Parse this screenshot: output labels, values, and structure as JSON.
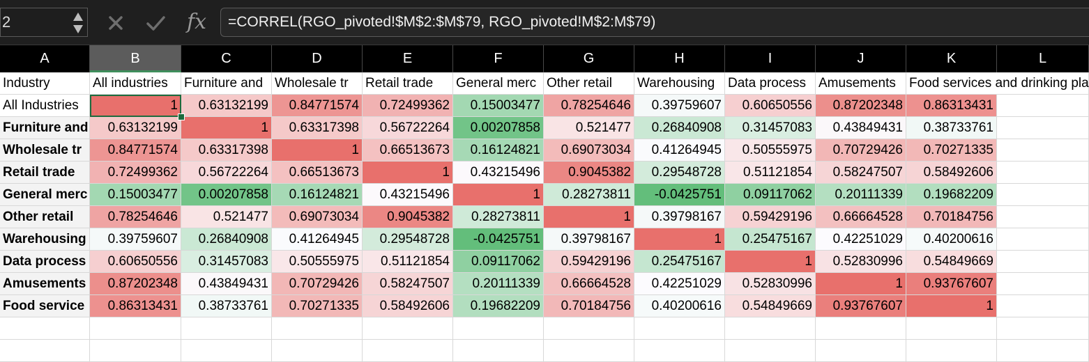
{
  "formula_bar": {
    "name_box": "2",
    "cancel_icon": "x-icon",
    "enter_icon": "check-icon",
    "fx_label": "fx",
    "formula": "=CORREL(RGO_pivoted!$M$2:$M$79, RGO_pivoted!M$2:M$79)"
  },
  "columns": [
    "A",
    "B",
    "C",
    "D",
    "E",
    "F",
    "G",
    "H",
    "I",
    "J",
    "K",
    "L"
  ],
  "selected_column": "B",
  "header_row": [
    "Industry",
    "All industries",
    "Furniture and",
    "Wholesale tr",
    "Retail trade",
    "General merc",
    "Other retail",
    "Warehousing",
    "Data process",
    "Amusements",
    "Food services and drinking places",
    ""
  ],
  "row_labels": [
    "All Industries",
    "Furniture and",
    "Wholesale tr",
    "Retail trade",
    "General merc",
    "Other retail",
    "Warehousing",
    "Data process",
    "Amusements",
    "Food service"
  ],
  "values": [
    [
      "1",
      "0.63132199",
      "0.84771574",
      "0.72499362",
      "0.15003477",
      "0.78254646",
      "0.39759607",
      "0.60650556",
      "0.87202348",
      "0.86313431"
    ],
    [
      "0.63132199",
      "1",
      "0.63317398",
      "0.56722264",
      "0.00207858",
      "0.521477",
      "0.26840908",
      "0.31457083",
      "0.43849431",
      "0.38733761"
    ],
    [
      "0.84771574",
      "0.63317398",
      "1",
      "0.66513673",
      "0.16124821",
      "0.69073034",
      "0.41264945",
      "0.50555975",
      "0.70729426",
      "0.70271335"
    ],
    [
      "0.72499362",
      "0.56722264",
      "0.66513673",
      "1",
      "0.43215496",
      "0.9045382",
      "0.29548728",
      "0.51121854",
      "0.58247507",
      "0.58492606"
    ],
    [
      "0.15003477",
      "0.00207858",
      "0.16124821",
      "0.43215496",
      "1",
      "0.28273811",
      "-0.0425751",
      "0.09117062",
      "0.20111339",
      "0.19682209"
    ],
    [
      "0.78254646",
      "0.521477",
      "0.69073034",
      "0.9045382",
      "0.28273811",
      "1",
      "0.39798167",
      "0.59429196",
      "0.66664528",
      "0.70184756"
    ],
    [
      "0.39759607",
      "0.26840908",
      "0.41264945",
      "0.29548728",
      "-0.0425751",
      "0.39798167",
      "1",
      "0.25475167",
      "0.42251029",
      "0.40200616"
    ],
    [
      "0.60650556",
      "0.31457083",
      "0.50555975",
      "0.51121854",
      "0.09117062",
      "0.59429196",
      "0.25475167",
      "1",
      "0.52830996",
      "0.54849669"
    ],
    [
      "0.87202348",
      "0.43849431",
      "0.70729426",
      "0.58247507",
      "0.20111339",
      "0.66664528",
      "0.42251029",
      "0.52830996",
      "1",
      "0.93767607"
    ],
    [
      "0.86313431",
      "0.38733761",
      "0.70271335",
      "0.58492606",
      "0.19682209",
      "0.70184756",
      "0.40200616",
      "0.54849669",
      "0.93767607",
      "1"
    ]
  ],
  "colors": {
    "heat_high": "#e8706c",
    "heat_mid": "#fcfcff",
    "heat_low": "#63be7b",
    "header_bg": "#000000",
    "formula_bg": "#1f1f1f",
    "selection": "#1e6b3e"
  }
}
